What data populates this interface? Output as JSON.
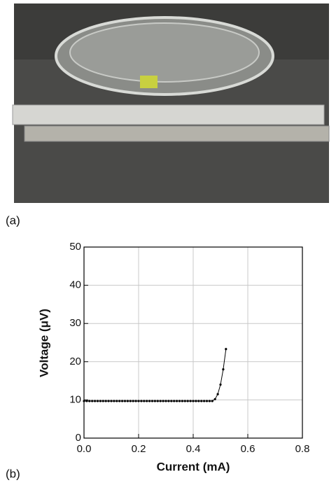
{
  "panel_labels": {
    "a": "(a)",
    "b": "(b)"
  },
  "chart_data": {
    "type": "line",
    "x_label": "Current (mA)",
    "y_label": "Voltage (μV)",
    "x": [
      0,
      0.01,
      0.02,
      0.03,
      0.04,
      0.05,
      0.06,
      0.07,
      0.08,
      0.09,
      0.1,
      0.11,
      0.12,
      0.13,
      0.14,
      0.15,
      0.16,
      0.17,
      0.18,
      0.19,
      0.2,
      0.21,
      0.22,
      0.23,
      0.24,
      0.25,
      0.26,
      0.27,
      0.28,
      0.29,
      0.3,
      0.31,
      0.32,
      0.33,
      0.34,
      0.35,
      0.36,
      0.37,
      0.38,
      0.39,
      0.4,
      0.41,
      0.42,
      0.43,
      0.44,
      0.45,
      0.46,
      0.47,
      0.48,
      0.49,
      0.5,
      0.51,
      0.52
    ],
    "values": [
      9.7,
      9.7,
      9.7,
      9.7,
      9.7,
      9.7,
      9.7,
      9.7,
      9.7,
      9.7,
      9.7,
      9.7,
      9.7,
      9.7,
      9.7,
      9.7,
      9.7,
      9.7,
      9.7,
      9.7,
      9.7,
      9.7,
      9.7,
      9.7,
      9.7,
      9.7,
      9.7,
      9.7,
      9.7,
      9.7,
      9.7,
      9.7,
      9.7,
      9.7,
      9.7,
      9.7,
      9.7,
      9.7,
      9.7,
      9.7,
      9.7,
      9.7,
      9.7,
      9.7,
      9.7,
      9.7,
      9.7,
      9.7,
      10.2,
      11.5,
      14,
      18,
      23.3
    ],
    "color": "#000000",
    "xlim": [
      0,
      0.8
    ],
    "ylim": [
      0,
      50
    ],
    "xticks": [
      {
        "value": 0,
        "label": "0.0"
      },
      0.2,
      0.4,
      0.6,
      0.8
    ],
    "yticks": [
      0,
      10,
      20,
      30,
      40,
      50
    ],
    "grid": true
  }
}
